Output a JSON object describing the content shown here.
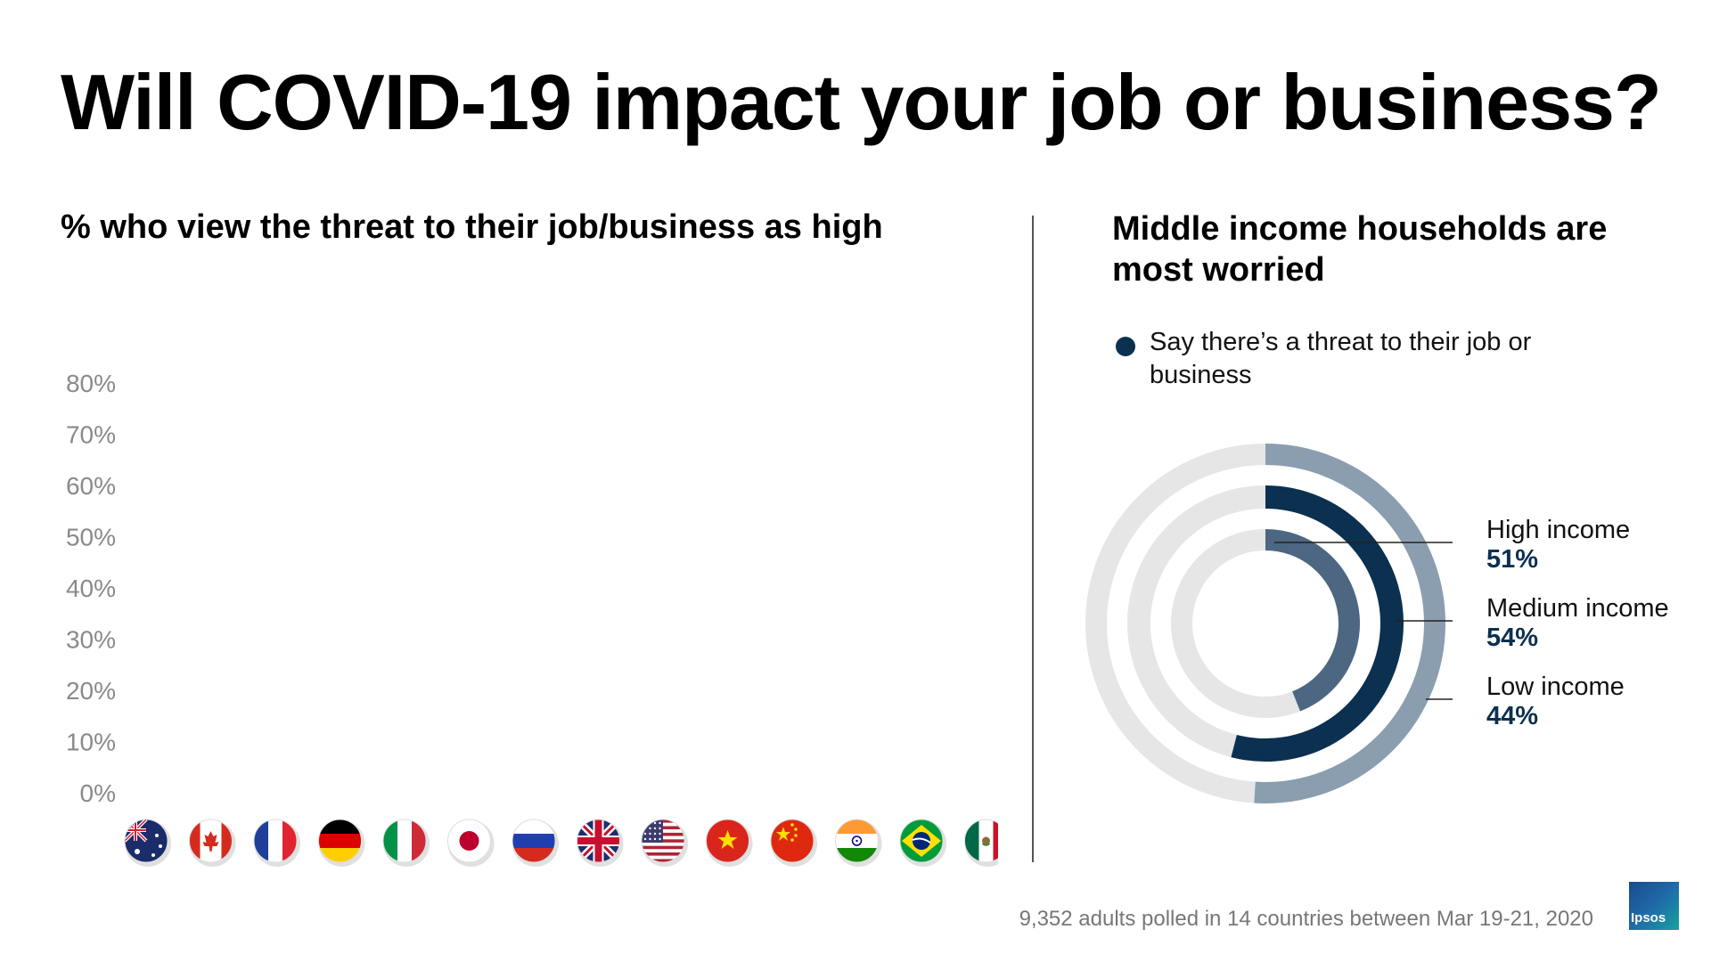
{
  "title": "Will COVID-19 impact your job or business?",
  "left_subtitle": "% who view the threat to their job/business as high",
  "right_subtitle": "Middle income households are most worried",
  "legend": {
    "label": "Say there’s a threat to their job or business",
    "color": "#0c3050"
  },
  "footer": "9,352 adults polled in 14 countries between Mar 19-21, 2020",
  "logo_text": "Ipsos",
  "chart_data": [
    {
      "type": "bar",
      "ylim": [
        0,
        80
      ],
      "ytick_labels": [
        "80%",
        "70%",
        "60%",
        "50%",
        "40%",
        "30%",
        "20%",
        "10%",
        "0%"
      ],
      "ytick_values": [
        80,
        70,
        60,
        50,
        40,
        30,
        20,
        10,
        0
      ],
      "category_icons": [
        "australia-flag-icon",
        "canada-flag-icon",
        "france-flag-icon",
        "germany-flag-icon",
        "italy-flag-icon",
        "japan-flag-icon",
        "russia-flag-icon",
        "uk-flag-icon",
        "usa-flag-icon",
        "vietnam-flag-icon",
        "china-flag-icon",
        "india-flag-icon",
        "brazil-flag-icon",
        "mexico-flag-icon"
      ]
    },
    {
      "type": "pie",
      "series": [
        {
          "name": "High income",
          "value_label": "51%",
          "value": 51,
          "color": "#8a9eb0"
        },
        {
          "name": "Medium income",
          "value_label": "54%",
          "value": 54,
          "color": "#0c3050"
        },
        {
          "name": "Low income",
          "value_label": "44%",
          "value": 44,
          "color": "#4d6783"
        }
      ],
      "track_color": "#e6e6e6"
    }
  ]
}
